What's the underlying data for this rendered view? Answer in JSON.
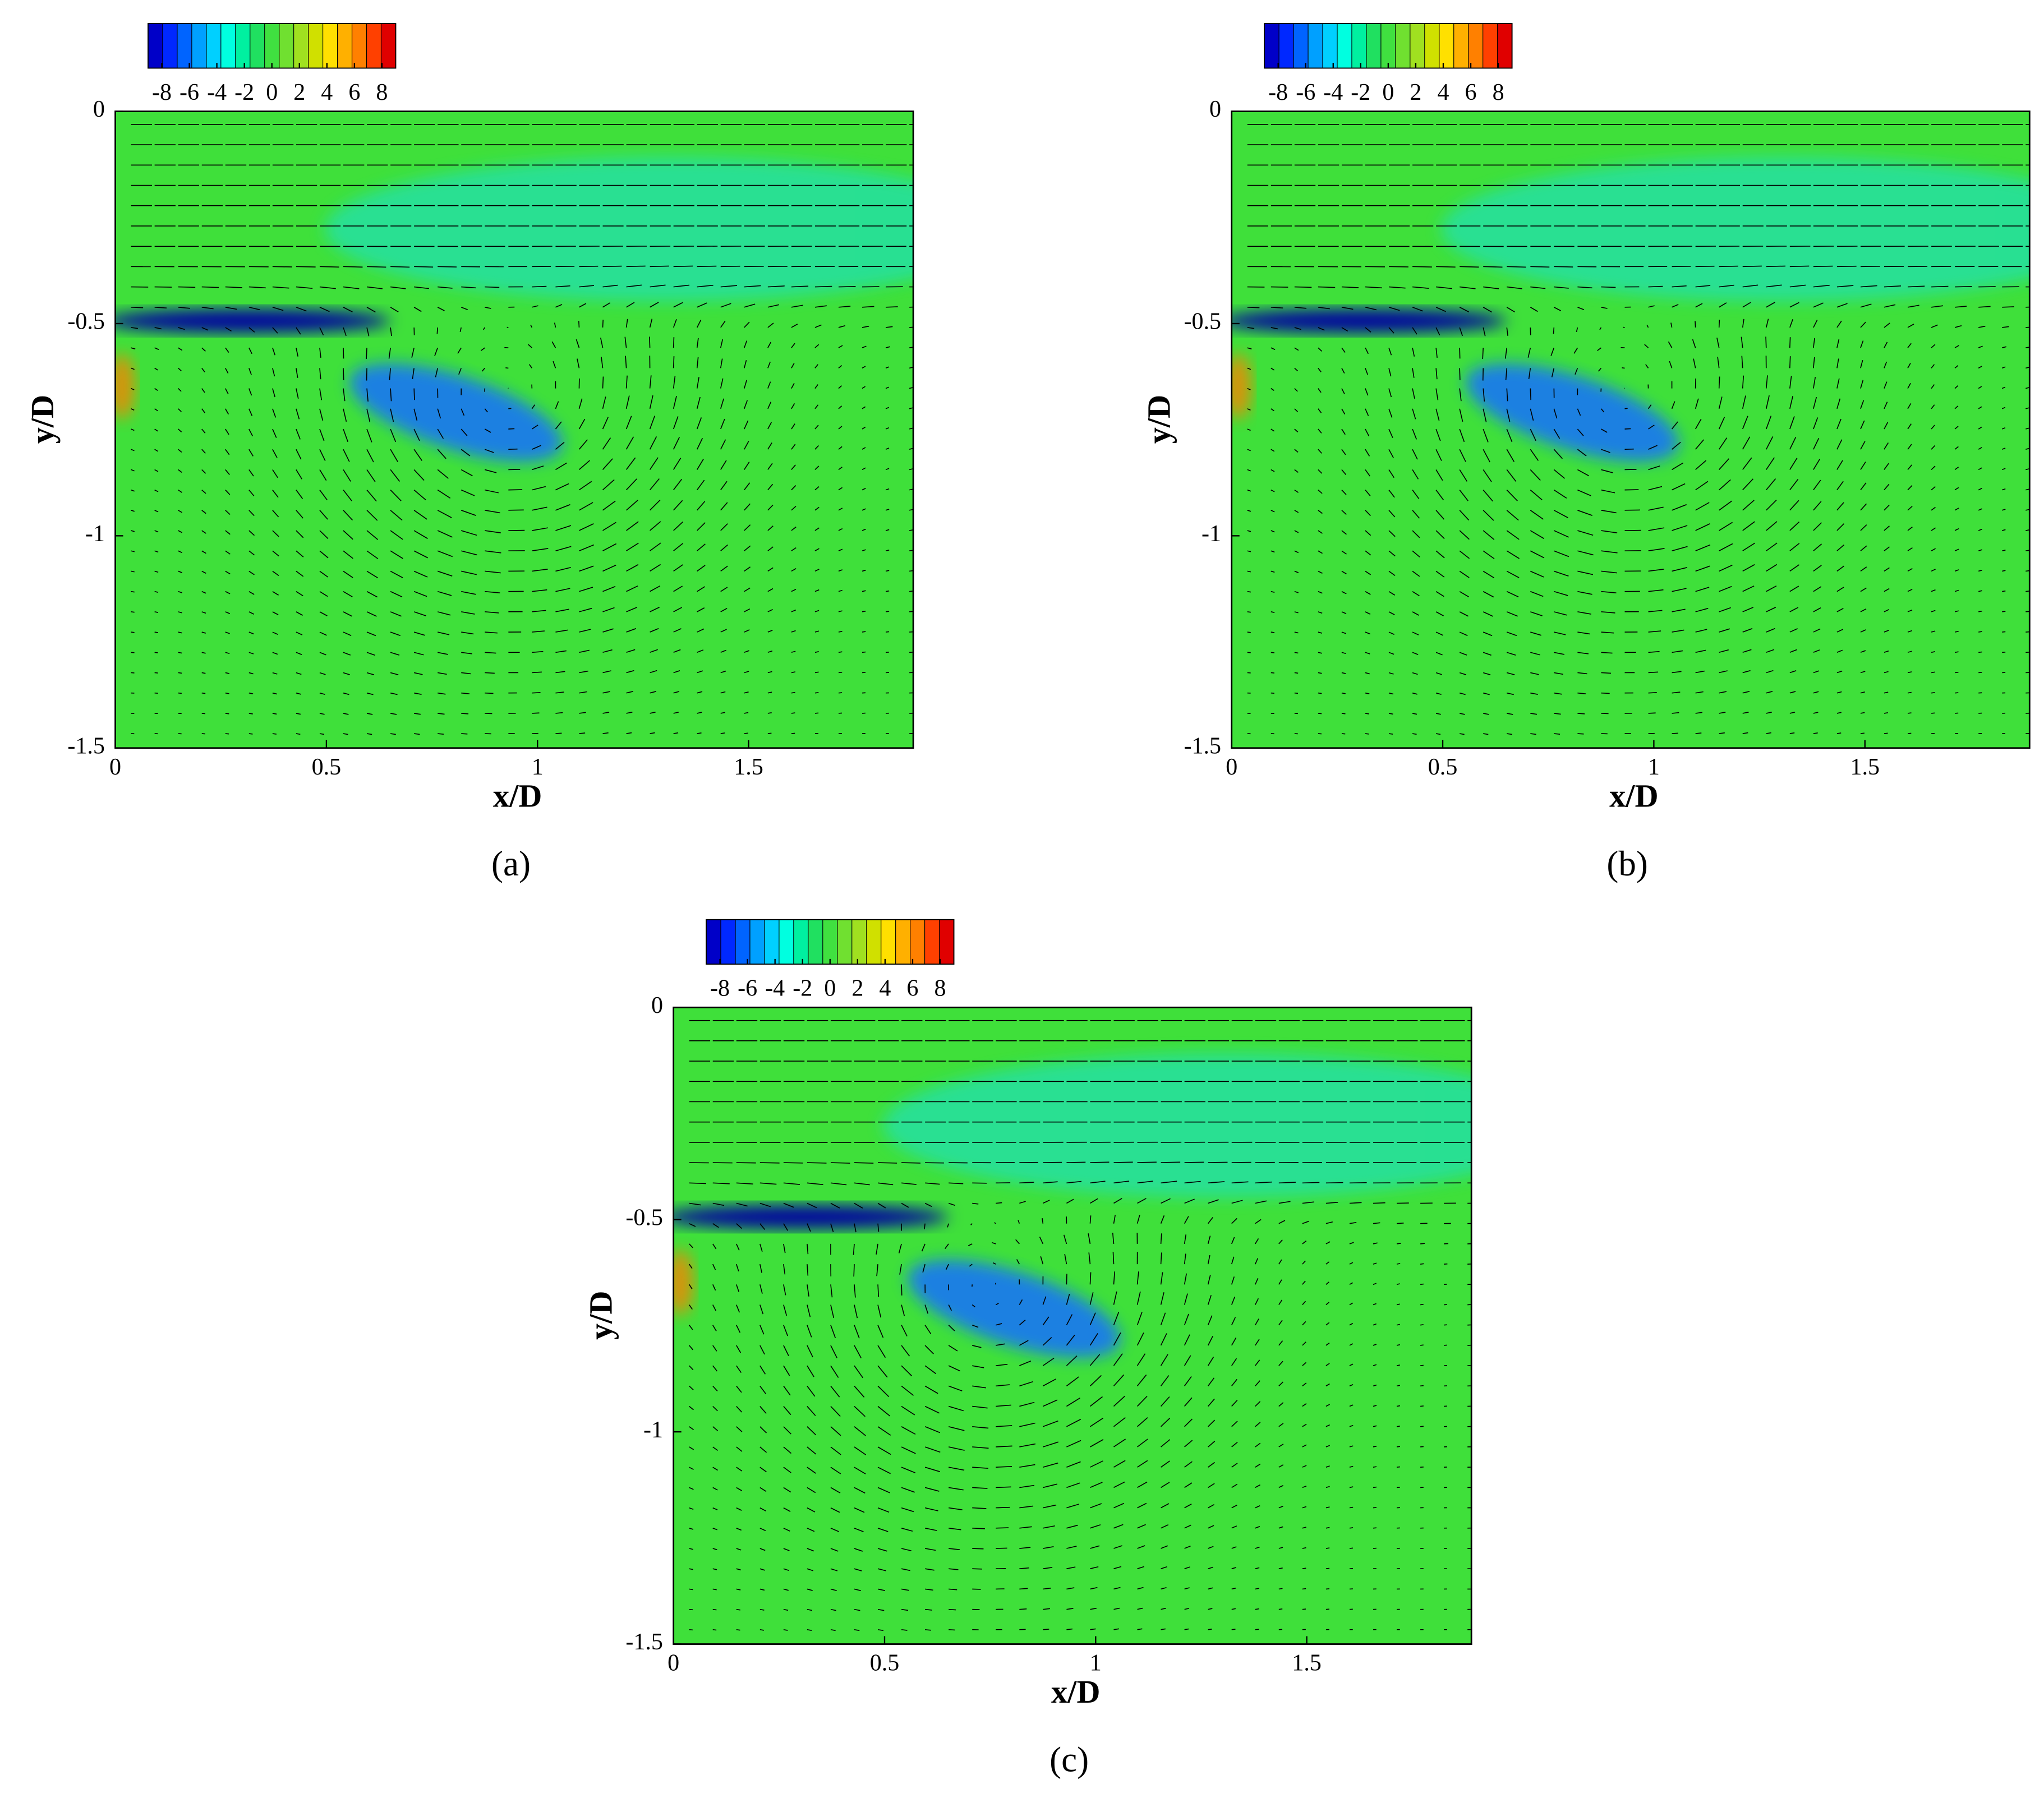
{
  "chart_data": [
    {
      "type": "contour",
      "panel": "(a)",
      "xlabel": "x/D",
      "ylabel": "y/D",
      "xlim": [
        0,
        1.89
      ],
      "ylim": [
        -1.5,
        0
      ],
      "xticks": [
        0,
        0.5,
        1,
        1.5
      ],
      "yticks": [
        0,
        -0.5,
        -1,
        -1.5
      ],
      "clim": [
        -9,
        9
      ],
      "cticks": [
        -8,
        -6,
        -4,
        -2,
        0,
        2,
        4,
        6,
        8
      ],
      "colors": [
        "#0000c8",
        "#0028ff",
        "#0064ff",
        "#00a0ff",
        "#00d0ff",
        "#00ffe0",
        "#00f0a0",
        "#20e060",
        "#40e040",
        "#70e030",
        "#a0e020",
        "#d0e000",
        "#ffe000",
        "#ffb000",
        "#ff8000",
        "#ff4000",
        "#e00000"
      ]
    },
    {
      "type": "contour",
      "panel": "(b)",
      "xlabel": "x/D",
      "ylabel": "y/D",
      "xlim": [
        0,
        1.89
      ],
      "ylim": [
        -1.5,
        0
      ],
      "xticks": [
        0,
        0.5,
        1,
        1.5
      ],
      "yticks": [
        0,
        -0.5,
        -1,
        -1.5
      ],
      "clim": [
        -9,
        9
      ],
      "cticks": [
        -8,
        -6,
        -4,
        -2,
        0,
        2,
        4,
        6,
        8
      ],
      "colors": [
        "#0000c8",
        "#0028ff",
        "#0064ff",
        "#00a0ff",
        "#00d0ff",
        "#00ffe0",
        "#00f0a0",
        "#20e060",
        "#40e040",
        "#70e030",
        "#a0e020",
        "#d0e000",
        "#ffe000",
        "#ffb000",
        "#ff8000",
        "#ff4000",
        "#e00000"
      ]
    },
    {
      "type": "contour",
      "panel": "(c)",
      "xlabel": "x/D",
      "ylabel": "y/D",
      "xlim": [
        0,
        1.89
      ],
      "ylim": [
        -1.5,
        0
      ],
      "xticks": [
        0,
        0.5,
        1,
        1.5
      ],
      "yticks": [
        0,
        -0.5,
        -1,
        -1.5
      ],
      "clim": [
        -9,
        9
      ],
      "cticks": [
        -8,
        -6,
        -4,
        -2,
        0,
        2,
        4,
        6,
        8
      ],
      "colors": [
        "#0000c8",
        "#0028ff",
        "#0064ff",
        "#00a0ff",
        "#00d0ff",
        "#00ffe0",
        "#00f0a0",
        "#20e060",
        "#40e040",
        "#70e030",
        "#a0e020",
        "#d0e000",
        "#ffe000",
        "#ffb000",
        "#ff8000",
        "#ff4000",
        "#e00000"
      ]
    }
  ]
}
